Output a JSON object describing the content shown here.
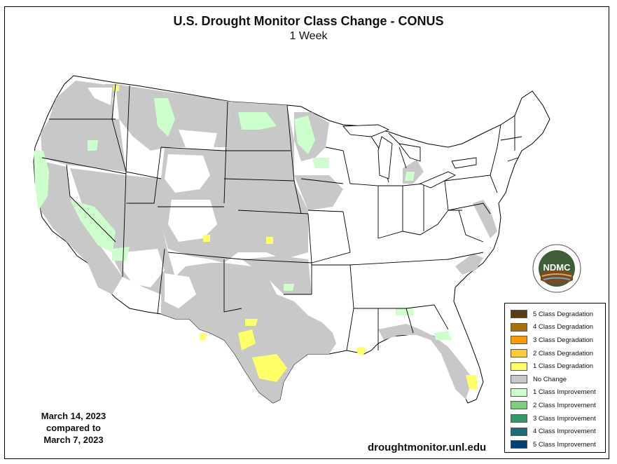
{
  "title": "U.S. Drought Monitor Class Change - CONUS",
  "subtitle": "1 Week",
  "date": {
    "line1": "March 14, 2023",
    "line2": "compared to",
    "line3": "March 7, 2023"
  },
  "url": "droughtmonitor.unl.edu",
  "logo": {
    "text": "NDMC",
    "ring_text": "NATIONAL DROUGHT MITIGATION CENTER · UNIVERSITY OF NEBRASKA"
  },
  "legend": [
    {
      "label": "5 Class Degradation",
      "color": "#5a3a14"
    },
    {
      "label": "4 Class Degradation",
      "color": "#a8700a"
    },
    {
      "label": "3 Class Degradation",
      "color": "#ff9a00"
    },
    {
      "label": "2 Class Degradation",
      "color": "#ffcc33"
    },
    {
      "label": "1 Class Degradation",
      "color": "#ffff66"
    },
    {
      "label": "No Change",
      "color": "#c8c8c8"
    },
    {
      "label": "1 Class Improvement",
      "color": "#ccffcc"
    },
    {
      "label": "2 Class Improvement",
      "color": "#80cc80"
    },
    {
      "label": "3 Class Improvement",
      "color": "#2e9a68"
    },
    {
      "label": "4 Class Improvement",
      "color": "#1a6e78"
    },
    {
      "label": "5 Class Improvement",
      "color": "#00427a"
    }
  ],
  "colors": {
    "no_change": "#c8c8c8",
    "improvement_1": "#ccffcc",
    "degradation_1": "#ffff66",
    "degradation_2": "#ffcc33",
    "border": "#000000"
  }
}
